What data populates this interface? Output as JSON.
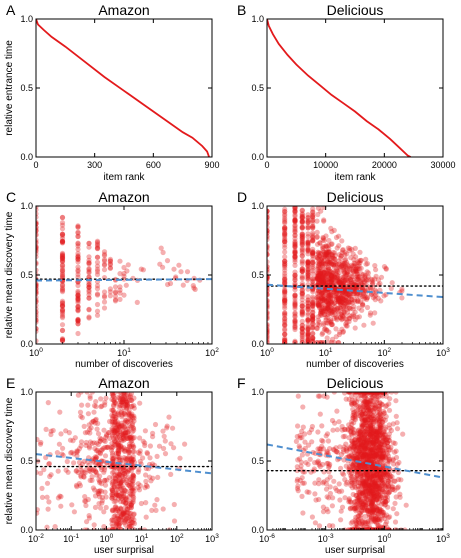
{
  "figure": {
    "panels": [
      {
        "letter": "A",
        "chart_data": {
          "type": "line",
          "title": "Amazon",
          "xlabel": "item rank",
          "ylabel": "relative entrance time",
          "xscale": "linear",
          "xlim": [
            0,
            900
          ],
          "ylim": [
            0,
            1
          ],
          "xticks": [
            "0",
            "300",
            "600",
            "900"
          ],
          "yticks": [
            "0.0",
            "0.5",
            "1.0"
          ],
          "series": [
            {
              "color": "#e31a1c",
              "x": [
                0,
                10,
                40,
                80,
                150,
                250,
                350,
                450,
                550,
                650,
                750,
                800,
                850,
                875,
                885
              ],
              "y": [
                1.0,
                0.96,
                0.92,
                0.87,
                0.8,
                0.69,
                0.58,
                0.48,
                0.38,
                0.28,
                0.18,
                0.14,
                0.08,
                0.04,
                0.0
              ]
            }
          ]
        }
      },
      {
        "letter": "B",
        "chart_data": {
          "type": "line",
          "title": "Delicious",
          "xlabel": "item rank",
          "ylabel": "",
          "xscale": "linear",
          "xlim": [
            0,
            30000
          ],
          "ylim": [
            0,
            1
          ],
          "xticks": [
            "0",
            "10000",
            "20000",
            "30000"
          ],
          "yticks": [
            "0.0",
            "0.5",
            "1.0"
          ],
          "series": [
            {
              "color": "#e31a1c",
              "x": [
                0,
                300,
                1000,
                2000,
                3500,
                5000,
                7000,
                9000,
                11000,
                13000,
                15000,
                17000,
                19000,
                21000,
                22500,
                24000,
                24500
              ],
              "y": [
                1.0,
                0.95,
                0.89,
                0.82,
                0.74,
                0.67,
                0.59,
                0.52,
                0.45,
                0.39,
                0.33,
                0.26,
                0.2,
                0.13,
                0.07,
                0.01,
                0.0
              ]
            }
          ]
        }
      },
      {
        "letter": "C",
        "chart_data": {
          "type": "scatter",
          "title": "Amazon",
          "xlabel": "number of discoveries",
          "ylabel": "relative mean discovery time",
          "xscale": "log",
          "xlim": [
            1,
            100
          ],
          "ylim": [
            0,
            1
          ],
          "xticks": [
            {
              "base": "10",
              "exp": "0"
            },
            {
              "base": "10",
              "exp": "1"
            },
            {
              "base": "10",
              "exp": "2"
            }
          ],
          "yticks": [
            "0.0",
            "0.5",
            "1.0"
          ],
          "point_color": "#e31a1c",
          "scatter_profile": "discrete-counts",
          "fit_line": {
            "style": "dashed",
            "color": "#4f8fcf",
            "x": [
              1,
              100
            ],
            "y": [
              0.46,
              0.47
            ]
          },
          "reference_line": {
            "style": "dotted",
            "color": "#000000",
            "y": 0.47
          }
        }
      },
      {
        "letter": "D",
        "chart_data": {
          "type": "scatter",
          "title": "Delicious",
          "xlabel": "number of discoveries",
          "ylabel": "",
          "xscale": "log",
          "xlim": [
            1,
            1000
          ],
          "ylim": [
            0,
            1
          ],
          "xticks": [
            {
              "base": "10",
              "exp": "0"
            },
            {
              "base": "10",
              "exp": "1"
            },
            {
              "base": "10",
              "exp": "2"
            },
            {
              "base": "10",
              "exp": "3"
            }
          ],
          "yticks": [
            "0.0",
            "0.5",
            "1.0"
          ],
          "point_color": "#e31a1c",
          "scatter_profile": "dense-counts",
          "fit_line": {
            "style": "dashed",
            "color": "#4f8fcf",
            "x": [
              1,
              1000
            ],
            "y": [
              0.43,
              0.34
            ]
          },
          "reference_line": {
            "style": "dotted",
            "color": "#000000",
            "y": 0.42
          }
        }
      },
      {
        "letter": "E",
        "chart_data": {
          "type": "scatter",
          "title": "Amazon",
          "xlabel": "user surprisal",
          "ylabel": "relative mean discovery time",
          "xscale": "log",
          "xlim": [
            0.01,
            1000
          ],
          "ylim": [
            0,
            1
          ],
          "xticks": [
            {
              "base": "10",
              "exp": "-2"
            },
            {
              "base": "10",
              "exp": "-1"
            },
            {
              "base": "10",
              "exp": "0"
            },
            {
              "base": "10",
              "exp": "1"
            },
            {
              "base": "10",
              "exp": "2"
            },
            {
              "base": "10",
              "exp": "3"
            }
          ],
          "yticks": [
            "0.0",
            "0.5",
            "1.0"
          ],
          "point_color": "#e31a1c",
          "scatter_profile": "surprisal-amazon",
          "fit_line": {
            "style": "dashed",
            "color": "#4f8fcf",
            "x": [
              0.01,
              1000
            ],
            "y": [
              0.55,
              0.41
            ]
          },
          "reference_line": {
            "style": "dotted",
            "color": "#000000",
            "y": 0.46
          }
        }
      },
      {
        "letter": "F",
        "chart_data": {
          "type": "scatter",
          "title": "Delicious",
          "xlabel": "user surprisal",
          "ylabel": "",
          "xscale": "log",
          "xlim": [
            1e-06,
            1000
          ],
          "ylim": [
            0,
            1
          ],
          "xticks": [
            {
              "base": "10",
              "exp": "-6"
            },
            {
              "base": "10",
              "exp": "-3"
            },
            {
              "base": "10",
              "exp": "0"
            },
            {
              "base": "10",
              "exp": "3"
            }
          ],
          "yticks": [
            "0.0",
            "0.5",
            "1.0"
          ],
          "point_color": "#e31a1c",
          "scatter_profile": "surprisal-delicious",
          "fit_line": {
            "style": "dashed",
            "color": "#4f8fcf",
            "x": [
              1e-06,
              1000
            ],
            "y": [
              0.62,
              0.38
            ]
          },
          "reference_line": {
            "style": "dotted",
            "color": "#000000",
            "y": 0.43
          }
        }
      }
    ]
  }
}
